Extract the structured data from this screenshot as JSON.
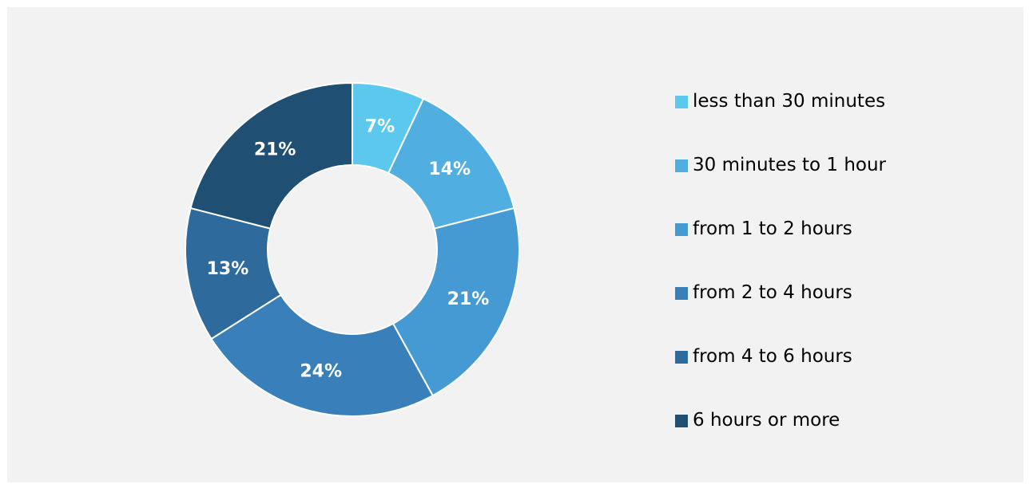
{
  "chart_data": {
    "type": "pie",
    "variant": "donut",
    "categories": [
      "less than 30 minutes",
      "30 minutes to 1 hour",
      "from 1 to 2 hours",
      "from 2 to 4 hours",
      "from 4 to 6 hours",
      "6 hours or more"
    ],
    "values": [
      7,
      14,
      21,
      24,
      13,
      21
    ],
    "labels": [
      "7%",
      "14%",
      "21%",
      "24%",
      "13%",
      "21%"
    ],
    "colors": [
      "#5dc8ee",
      "#51aee1",
      "#459ad3",
      "#3980ba",
      "#2e6a9c",
      "#1f4f72"
    ],
    "legend_position": "right"
  }
}
